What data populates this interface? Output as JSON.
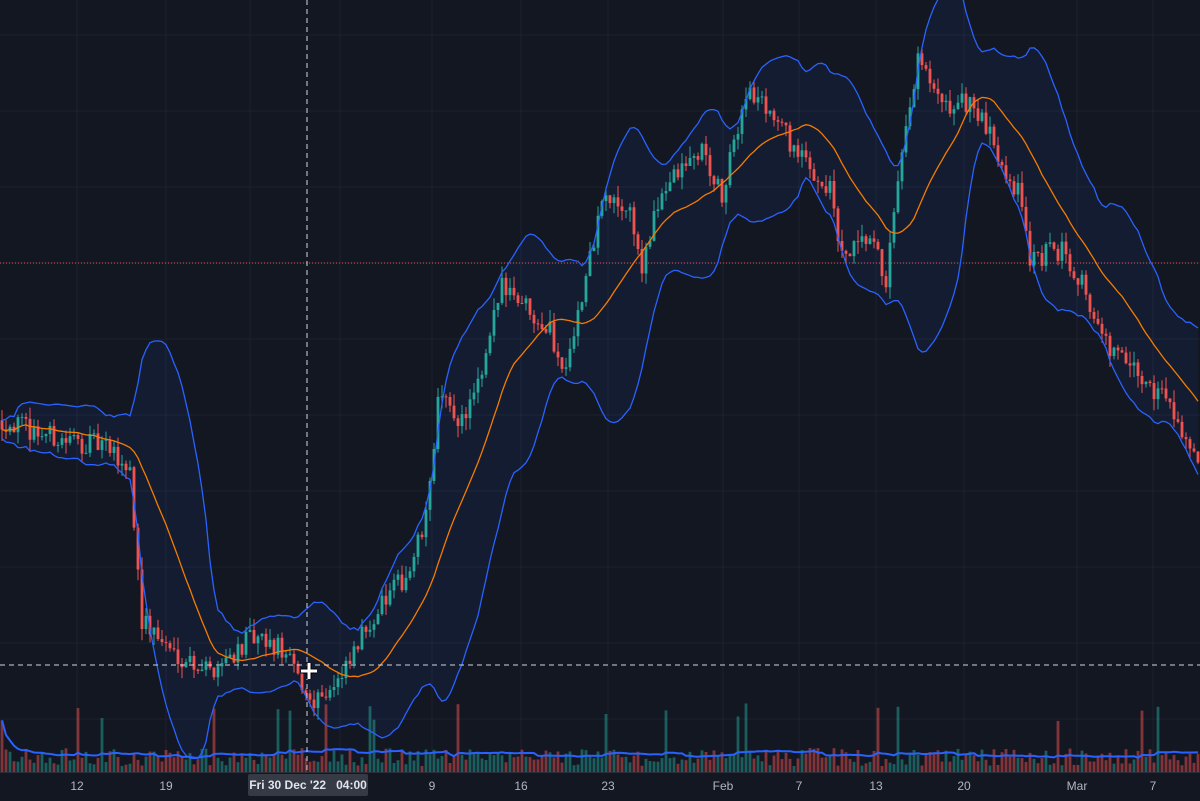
{
  "chart_data": {
    "type": "candlestick",
    "title": "",
    "indicators": [
      "Bollinger Bands (20, 2)",
      "Volume",
      "Volume MA"
    ],
    "candle_count": 300,
    "price_path_keypoints": [
      [
        0,
        44.7
      ],
      [
        15,
        42.1
      ],
      [
        25,
        41.4
      ],
      [
        32,
        38.2
      ],
      [
        35,
        18.4
      ],
      [
        42,
        14.5
      ],
      [
        52,
        11.8
      ],
      [
        62,
        15.8
      ],
      [
        70,
        14.5
      ],
      [
        77,
        7.9
      ],
      [
        85,
        10.5
      ],
      [
        92,
        18.4
      ],
      [
        102,
        25.0
      ],
      [
        106,
        31.6
      ],
      [
        109,
        47.4
      ],
      [
        115,
        44.7
      ],
      [
        120,
        50.0
      ],
      [
        125,
        63.2
      ],
      [
        130,
        60.5
      ],
      [
        137,
        56.6
      ],
      [
        140,
        51.3
      ],
      [
        145,
        60.5
      ],
      [
        150,
        73.7
      ],
      [
        157,
        72.4
      ],
      [
        160,
        64.5
      ],
      [
        165,
        75.0
      ],
      [
        175,
        80.3
      ],
      [
        180,
        73.7
      ],
      [
        186,
        88.2
      ],
      [
        192,
        85.5
      ],
      [
        200,
        78.9
      ],
      [
        207,
        75.0
      ],
      [
        210,
        65.8
      ],
      [
        217,
        68.4
      ],
      [
        221,
        63.2
      ],
      [
        225,
        78.9
      ],
      [
        229,
        92.1
      ],
      [
        235,
        85.5
      ],
      [
        242,
        86.8
      ],
      [
        250,
        78.9
      ],
      [
        255,
        73.7
      ],
      [
        257,
        65.8
      ],
      [
        265,
        67.1
      ],
      [
        270,
        63.2
      ],
      [
        275,
        55.3
      ],
      [
        285,
        50.0
      ],
      [
        292,
        47.4
      ],
      [
        299,
        38.2
      ]
    ],
    "ylim": [
      0,
      100
    ],
    "x_tick_labels": [
      "12",
      "19",
      "9",
      "16",
      "23",
      "Feb",
      "7",
      "13",
      "20",
      "Mar",
      "7"
    ],
    "crosshair": {
      "date": "Fri 30 Dec '22",
      "time": "04:00"
    },
    "colors": {
      "up": "#26a69a",
      "down": "#ef5350",
      "basis": "#f57c00",
      "bands": "#2962ff",
      "background": "#131722"
    }
  }
}
